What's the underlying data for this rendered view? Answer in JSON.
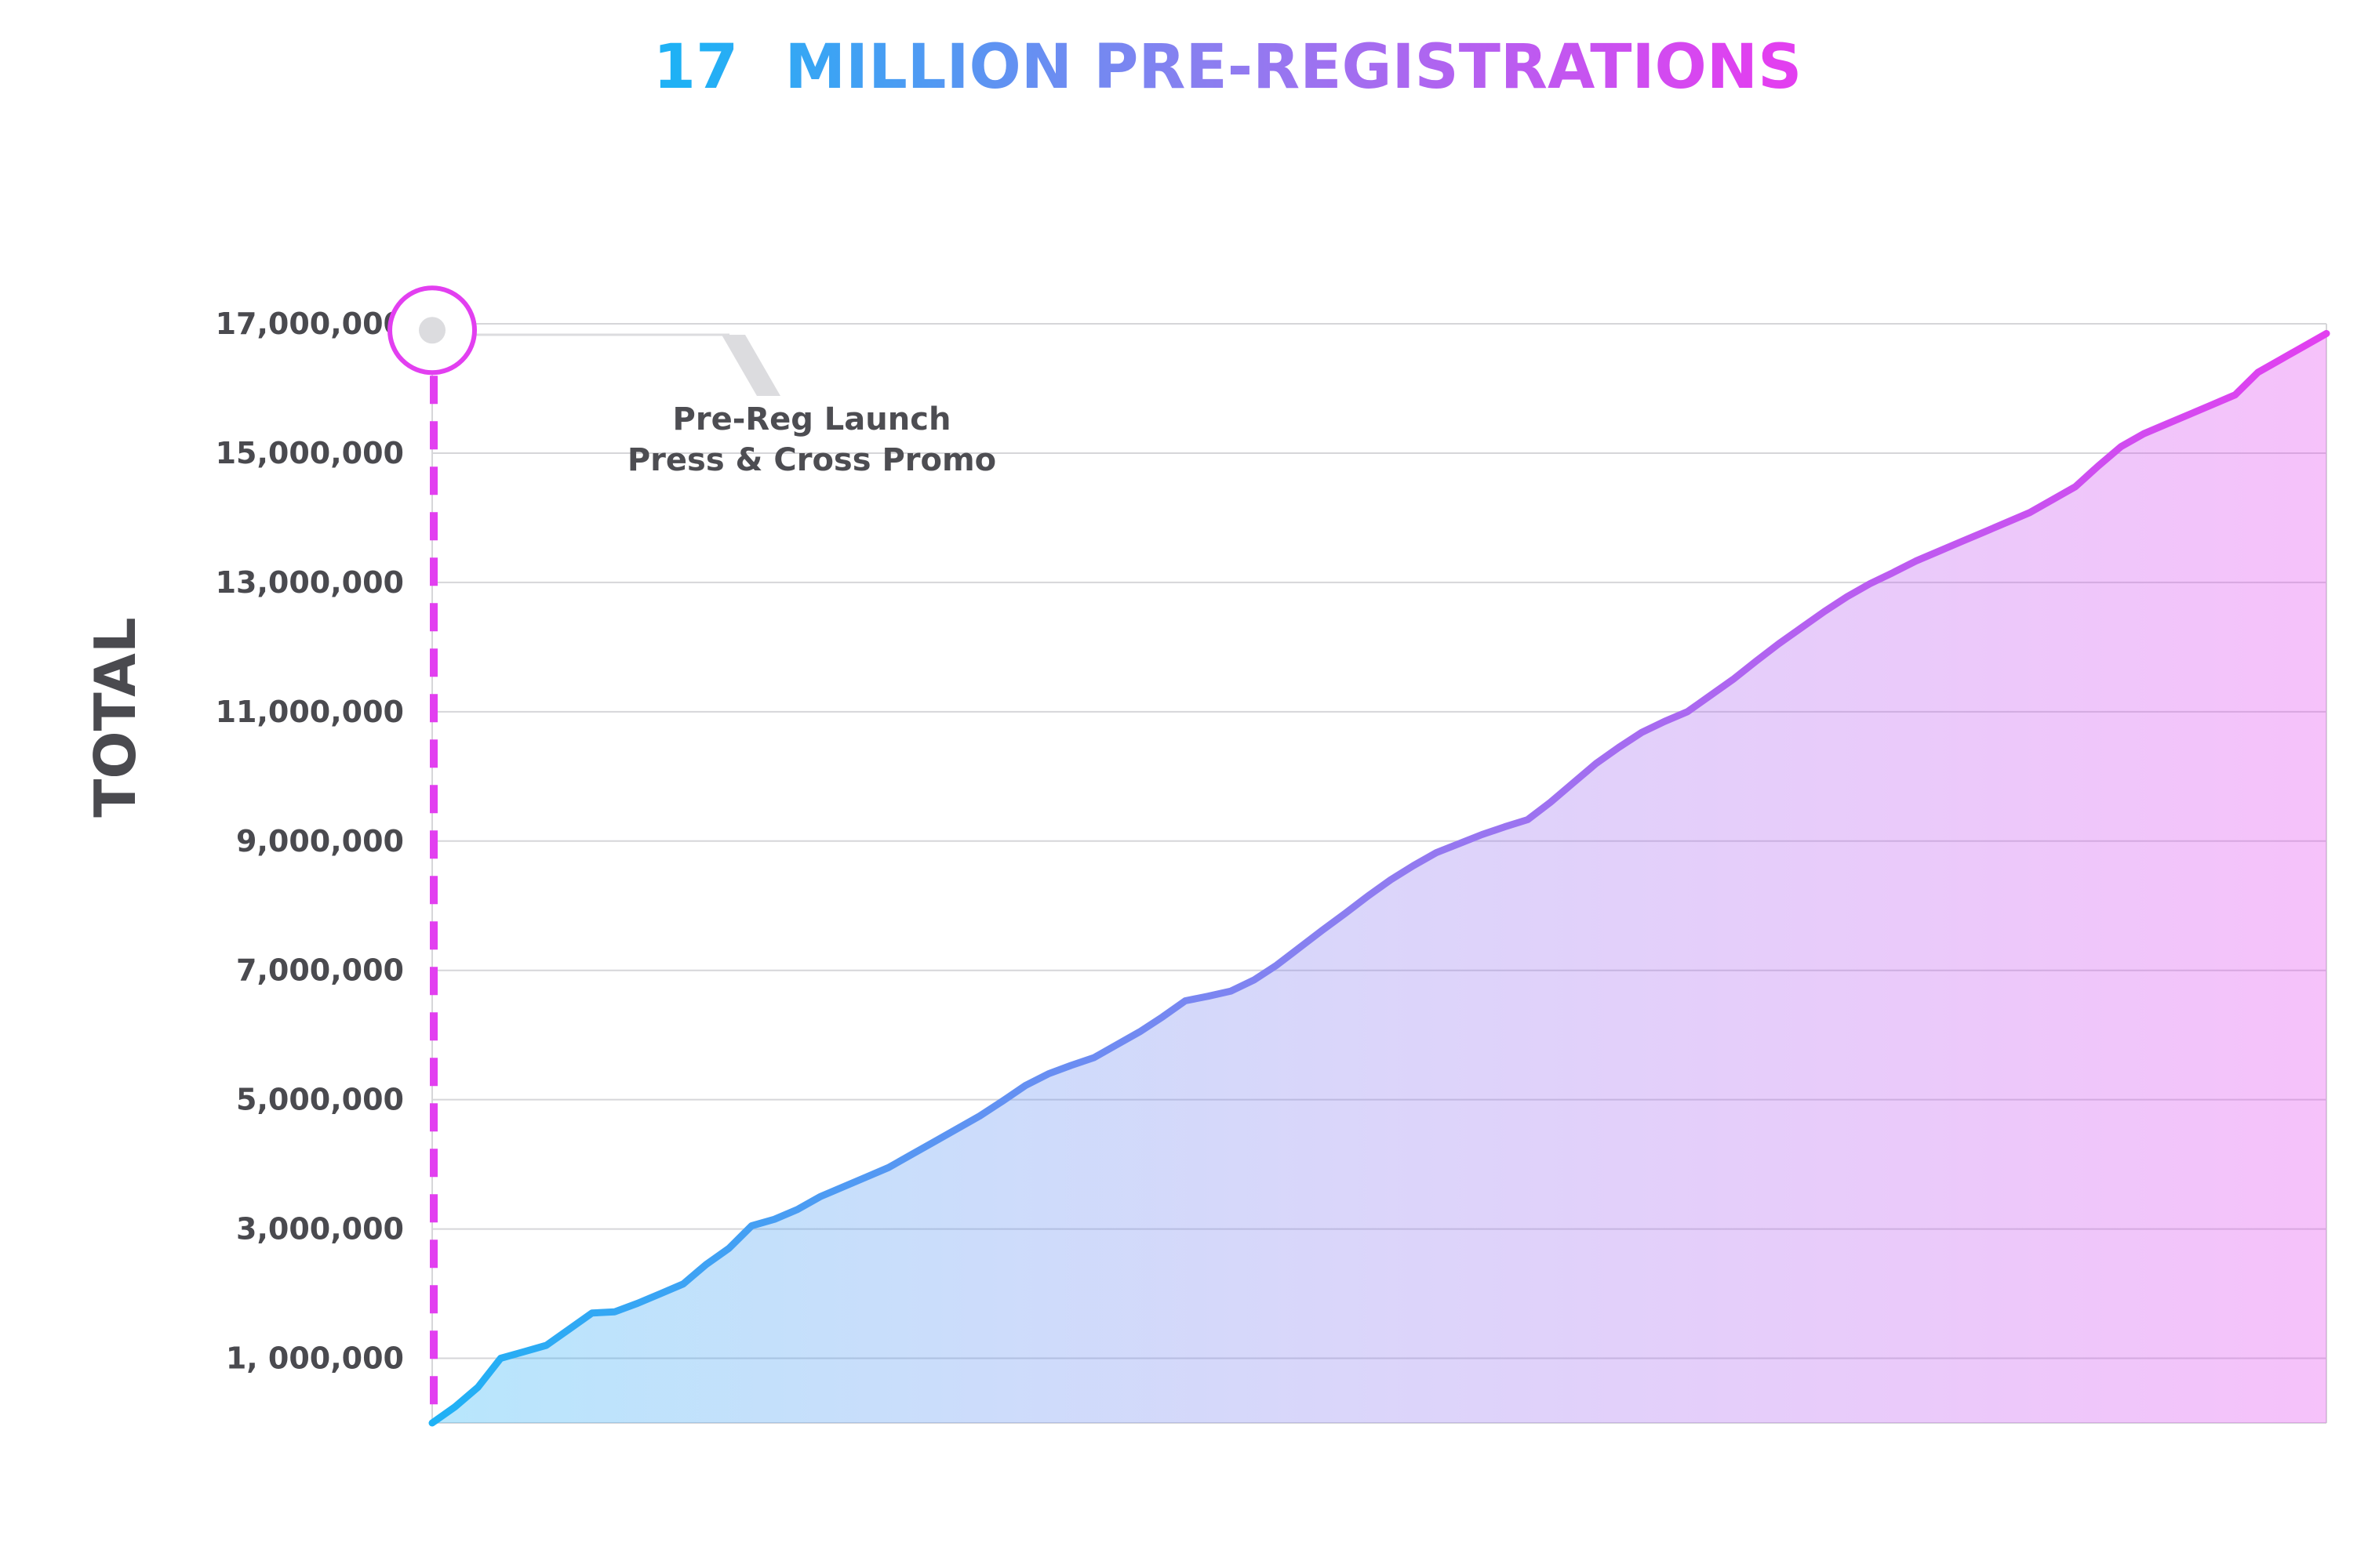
{
  "colors": {
    "start": "#1fb1f5",
    "mid": "#8f7cf0",
    "end": "#e23ff0",
    "grid": "#d6d6d9",
    "text": "#4a4a4f"
  },
  "chart_data": {
    "type": "area",
    "title_parts": [
      "17",
      "MILLION PRE-REGISTRATIONS"
    ],
    "xlabel": "",
    "ylabel": "TOTAL",
    "ylim": [
      0,
      17000000
    ],
    "yticks": [
      1000000,
      3000000,
      5000000,
      7000000,
      9000000,
      11000000,
      13000000,
      15000000,
      17000000
    ],
    "ytick_labels": [
      "1, 000,000",
      "3,000,000",
      "5,000,000",
      "7,000,000",
      "9,000,000",
      "11,000,000",
      "13,000,000",
      "15,000,000",
      "17,000,000"
    ],
    "grid": true,
    "annotation": {
      "lines": [
        "Pre-Reg Launch",
        "Press & Cross Promo"
      ],
      "value": 16900000
    },
    "series": [
      {
        "values": [
          0,
          250000,
          550000,
          1000000,
          1100000,
          1200000,
          1450000,
          1700000,
          1720000,
          1850000,
          2000000,
          2150000,
          2450000,
          2700000,
          3050000,
          3150000,
          3300000,
          3500000,
          3650000,
          3800000,
          3950000,
          4150000,
          4350000,
          4550000,
          4750000,
          4980000,
          5220000,
          5400000,
          5530000,
          5650000,
          5850000,
          6050000,
          6280000,
          6530000,
          6600000,
          6680000,
          6850000,
          7080000,
          7350000,
          7620000,
          7880000,
          8150000,
          8400000,
          8620000,
          8820000,
          8960000,
          9100000,
          9220000,
          9330000,
          9600000,
          9900000,
          10200000,
          10450000,
          10680000,
          10850000,
          11000000,
          11250000,
          11500000,
          11780000,
          12050000,
          12300000,
          12550000,
          12780000,
          12980000,
          13150000,
          13330000,
          13480000,
          13630000,
          13780000,
          13930000,
          14080000,
          14280000,
          14480000,
          14800000,
          15100000,
          15300000,
          15450000,
          15600000,
          15750000,
          15900000,
          16250000,
          16450000,
          16650000,
          16850000
        ]
      }
    ]
  }
}
